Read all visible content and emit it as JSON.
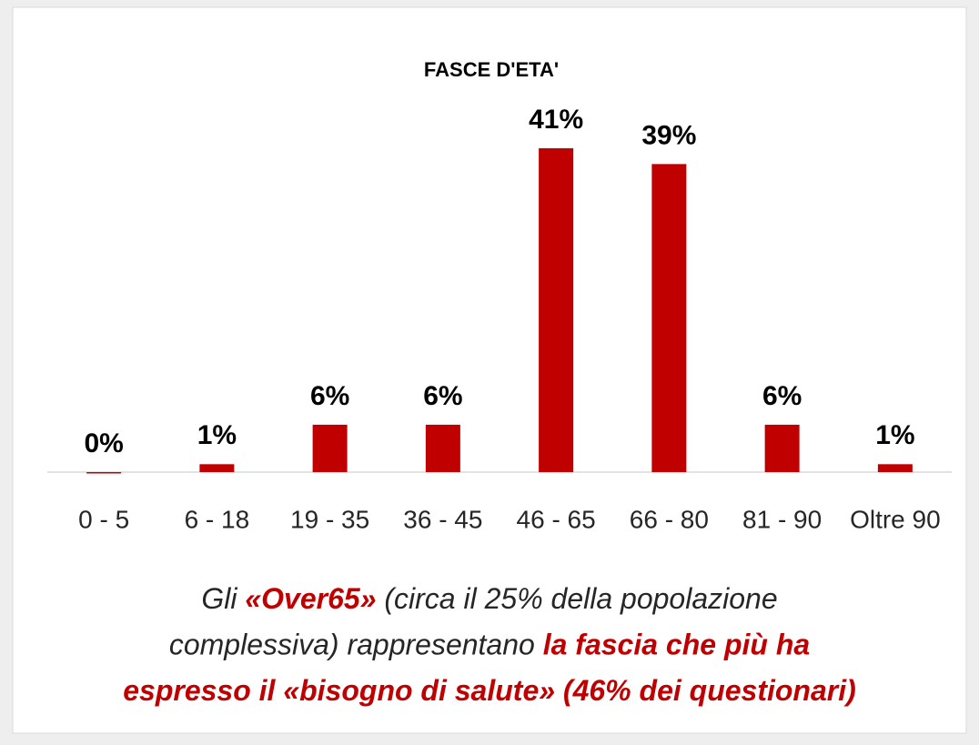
{
  "chart_data": {
    "type": "bar",
    "title": "FASCE D'ETA'",
    "categories": [
      "0 - 5",
      "6 - 18",
      "19 - 35",
      "36 - 45",
      "46 - 65",
      "66 - 80",
      "81 - 90",
      "Oltre 90"
    ],
    "values": [
      0,
      1,
      6,
      6,
      41,
      39,
      6,
      1
    ],
    "value_labels": [
      "0%",
      "1%",
      "6%",
      "6%",
      "41%",
      "39%",
      "6%",
      "1%"
    ],
    "color": "#c00000",
    "caption": [
      [
        {
          "text": "Gli ",
          "color": "#262626",
          "bold": false
        },
        {
          "text": "«Over65»",
          "color": "#c00000",
          "bold": true
        },
        {
          "text": " (circa il 25% della popolazione",
          "color": "#262626",
          "bold": false
        }
      ],
      [
        {
          "text": "complessiva) rappresentano ",
          "color": "#262626",
          "bold": false
        },
        {
          "text": "la fascia che più ha",
          "color": "#c00000",
          "bold": true
        }
      ],
      [
        {
          "text": "espresso il «bisogno di salute» (46% dei questionari)",
          "color": "#c00000",
          "bold": true
        }
      ]
    ]
  }
}
